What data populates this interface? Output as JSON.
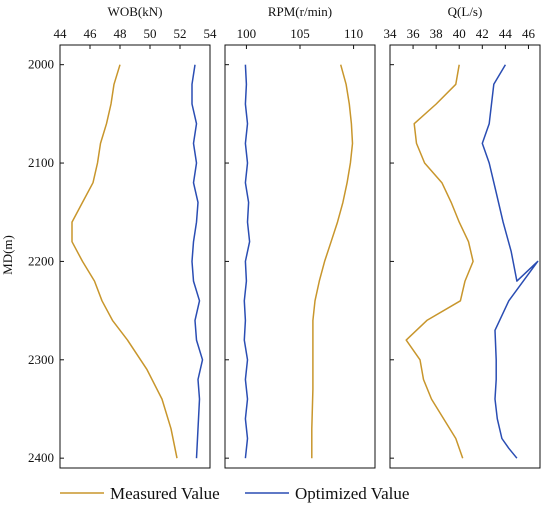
{
  "chart_data": {
    "type": "line",
    "y_axis": {
      "label": "MD(m)",
      "ticks": [
        2000,
        2100,
        2200,
        2300,
        2400
      ],
      "range": [
        1980,
        2410
      ],
      "inverted": true
    },
    "legend": {
      "placement": "bottom",
      "entries": [
        {
          "name": "Measured Value",
          "color": "#c8962c"
        },
        {
          "name": "Optimized Value",
          "color": "#2a4db3"
        }
      ]
    },
    "panels": [
      {
        "title": "WOB(kN)",
        "xlim": [
          44,
          54
        ],
        "xticks": [
          44,
          46,
          48,
          50,
          52,
          54
        ],
        "series": [
          {
            "name": "Measured Value",
            "x": [
              48,
              47.6,
              47.4,
              47.1,
              46.7,
              46.5,
              46.2,
              45.5,
              44.8,
              44.8,
              45.5,
              46.3,
              46.8,
              47.5,
              48.5,
              49.8,
              50.8,
              51.4,
              51.8
            ],
            "md": [
              2000,
              2020,
              2040,
              2060,
              2080,
              2100,
              2120,
              2140,
              2160,
              2180,
              2200,
              2220,
              2240,
              2260,
              2280,
              2310,
              2340,
              2370,
              2400
            ]
          },
          {
            "name": "Optimized Value",
            "x": [
              53.0,
              52.8,
              52.8,
              53.1,
              52.9,
              53.1,
              52.9,
              53.2,
              53.1,
              52.9,
              52.8,
              52.9,
              53.3,
              53.0,
              53.1,
              53.5,
              53.2,
              53.3,
              53.2,
              53.1
            ],
            "md": [
              2000,
              2020,
              2040,
              2060,
              2080,
              2100,
              2120,
              2140,
              2160,
              2180,
              2200,
              2220,
              2240,
              2260,
              2280,
              2300,
              2320,
              2340,
              2370,
              2400
            ]
          }
        ]
      },
      {
        "title": "RPM(r/min)",
        "xlim": [
          98,
          112
        ],
        "xticks": [
          100,
          105,
          110
        ],
        "series": [
          {
            "name": "Measured Value",
            "x": [
              108.8,
              109.3,
              109.6,
              109.8,
              109.9,
              109.7,
              109.4,
              109.0,
              108.5,
              107.9,
              107.3,
              106.8,
              106.4,
              106.2,
              106.2,
              106.2,
              106.2,
              106.1,
              106.1
            ],
            "md": [
              2000,
              2020,
              2040,
              2060,
              2080,
              2100,
              2120,
              2140,
              2160,
              2180,
              2200,
              2220,
              2240,
              2260,
              2280,
              2300,
              2330,
              2370,
              2400
            ]
          },
          {
            "name": "Optimized Value",
            "x": [
              99.9,
              100.0,
              99.9,
              100.1,
              99.9,
              100.1,
              99.9,
              100.2,
              100.1,
              100.3,
              99.9,
              100.0,
              99.8,
              99.9,
              99.8,
              100.1,
              99.9,
              100.1,
              99.9,
              100.1,
              99.9
            ],
            "md": [
              2000,
              2020,
              2040,
              2060,
              2080,
              2100,
              2120,
              2140,
              2160,
              2180,
              2200,
              2220,
              2240,
              2260,
              2280,
              2300,
              2320,
              2340,
              2360,
              2380,
              2400
            ]
          }
        ]
      },
      {
        "title": "Q(L/s)",
        "xlim": [
          34,
          47
        ],
        "xticks": [
          34,
          36,
          38,
          40,
          42,
          44,
          46
        ],
        "series": [
          {
            "name": "Measured Value",
            "x": [
              40,
              39.7,
              38.0,
              36.1,
              36.3,
              37.0,
              38.5,
              39.3,
              40.0,
              40.8,
              41.2,
              40.5,
              40.1,
              37.2,
              35.4,
              36.6,
              36.9,
              37.6,
              39.7,
              40.3
            ],
            "md": [
              2000,
              2020,
              2040,
              2060,
              2080,
              2100,
              2120,
              2140,
              2160,
              2180,
              2200,
              2220,
              2240,
              2260,
              2280,
              2300,
              2320,
              2340,
              2380,
              2400
            ]
          },
          {
            "name": "Optimized Value",
            "x": [
              44.0,
              43.0,
              42.6,
              42.0,
              42.6,
              43.2,
              43.8,
              44.5,
              45.0,
              46.8,
              44.3,
              43.1,
              43.2,
              43.2,
              43.1,
              43.3,
              43.7,
              44.3,
              45.0
            ],
            "md": [
              2000,
              2020,
              2060,
              2080,
              2100,
              2130,
              2160,
              2190,
              2220,
              2200,
              2240,
              2270,
              2300,
              2320,
              2340,
              2360,
              2380,
              2390,
              2400
            ]
          }
        ]
      }
    ]
  }
}
